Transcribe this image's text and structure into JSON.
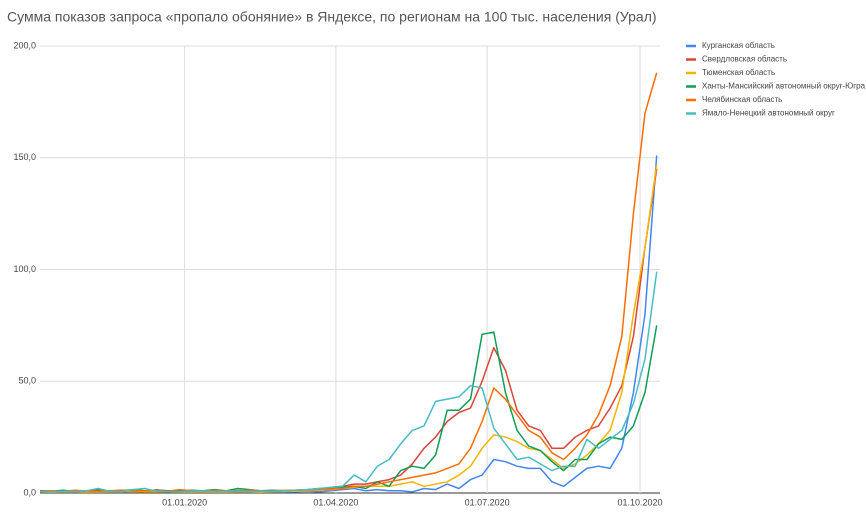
{
  "chart_data": {
    "type": "line",
    "title": "Сумма показов запроса «пропало обоняние» в Яндексе, по регионам на 100 тыс. населения (Урал)",
    "x": [
      "2019-10-06",
      "2019-10-13",
      "2019-10-20",
      "2019-10-27",
      "2019-11-03",
      "2019-11-10",
      "2019-11-17",
      "2019-11-24",
      "2019-12-01",
      "2019-12-08",
      "2019-12-15",
      "2019-12-22",
      "2019-12-29",
      "2020-01-05",
      "2020-01-12",
      "2020-01-19",
      "2020-01-26",
      "2020-02-02",
      "2020-02-09",
      "2020-02-16",
      "2020-02-23",
      "2020-03-01",
      "2020-03-08",
      "2020-03-15",
      "2020-03-22",
      "2020-03-29",
      "2020-04-05",
      "2020-04-12",
      "2020-04-19",
      "2020-04-26",
      "2020-05-03",
      "2020-05-10",
      "2020-05-17",
      "2020-05-24",
      "2020-05-31",
      "2020-06-07",
      "2020-06-14",
      "2020-06-21",
      "2020-06-28",
      "2020-07-05",
      "2020-07-12",
      "2020-07-19",
      "2020-07-26",
      "2020-08-02",
      "2020-08-09",
      "2020-08-16",
      "2020-08-23",
      "2020-08-30",
      "2020-09-06",
      "2020-09-13",
      "2020-09-20",
      "2020-09-27",
      "2020-10-04",
      "2020-10-11"
    ],
    "xlim": [
      "2019-10-06",
      "2020-10-13"
    ],
    "xticks": [
      {
        "value": "2020-01-01",
        "label": "01.01.2020"
      },
      {
        "value": "2020-04-01",
        "label": "01.04.2020"
      },
      {
        "value": "2020-07-01",
        "label": "01.07.2020"
      },
      {
        "value": "2020-10-01",
        "label": "01.10.2020"
      }
    ],
    "ylim": [
      0,
      200
    ],
    "yticks": [
      {
        "value": 0,
        "label": "0,0"
      },
      {
        "value": 50,
        "label": "50,0"
      },
      {
        "value": 100,
        "label": "100,0"
      },
      {
        "value": 150,
        "label": "150,0"
      },
      {
        "value": 200,
        "label": "200,0"
      }
    ],
    "grid": true,
    "legend": "right",
    "series": [
      {
        "name": "Курганская область",
        "color": "#4285f4",
        "values": [
          0.5,
          0.3,
          0.5,
          0.4,
          0.6,
          0.3,
          0.5,
          0.4,
          1,
          0.5,
          1.5,
          0.8,
          0.5,
          0.3,
          0.5,
          0.4,
          0.3,
          0.6,
          0.4,
          0.3,
          0.5,
          0.4,
          0.6,
          0.8,
          0.5,
          1,
          1.5,
          2,
          1,
          1.5,
          1,
          1,
          0.5,
          2,
          1.5,
          4,
          2,
          6,
          8,
          15,
          14,
          12,
          11,
          11,
          5,
          3,
          7,
          11,
          12,
          11,
          20,
          45,
          80,
          151
        ]
      },
      {
        "name": "Свердловская область",
        "color": "#db4437",
        "values": [
          1,
          0.8,
          1,
          0.7,
          0.9,
          1,
          0.8,
          1,
          1.2,
          0.9,
          1.3,
          1,
          0.8,
          1,
          0.9,
          1,
          0.8,
          1.1,
          1,
          0.9,
          1,
          1.1,
          1.2,
          1.5,
          1.8,
          2.5,
          3,
          4,
          4,
          5,
          6,
          8,
          13,
          20,
          25,
          32,
          36,
          38,
          50,
          65,
          55,
          37,
          30,
          28,
          20,
          20,
          25,
          28,
          30,
          38,
          48,
          70,
          110,
          145
        ]
      },
      {
        "name": "Тюменская область",
        "color": "#f4b400",
        "values": [
          0.5,
          0.4,
          0.6,
          0.5,
          0.4,
          0.5,
          0.6,
          0.5,
          0.7,
          0.5,
          0.6,
          0.5,
          0.4,
          0.6,
          0.5,
          0.4,
          0.5,
          0.6,
          0.5,
          0.4,
          0.6,
          0.7,
          0.8,
          1,
          1.2,
          1.5,
          2,
          2.5,
          3,
          3,
          3,
          4,
          5,
          3,
          4,
          5,
          8,
          12,
          20,
          26,
          25,
          23,
          20,
          19,
          15,
          11,
          13,
          17,
          22,
          28,
          45,
          80,
          110,
          147
        ]
      },
      {
        "name": "Ханты-Мансийский автономный округ-Югра",
        "color": "#0f9d58",
        "values": [
          1,
          0.8,
          1.2,
          0.6,
          1,
          1.5,
          0.8,
          1,
          1.5,
          1,
          1.2,
          1,
          0.8,
          1.2,
          1,
          1.5,
          1,
          2,
          1.5,
          1,
          1.2,
          1,
          1.3,
          1.5,
          2,
          2,
          2.5,
          3,
          2,
          5,
          3,
          10,
          12,
          11,
          17,
          37,
          37,
          42,
          71,
          72,
          45,
          28,
          21,
          19,
          14,
          10,
          15,
          15,
          22,
          25,
          24,
          30,
          45,
          75
        ]
      },
      {
        "name": "Челябинская область",
        "color": "#ff6d00",
        "values": [
          0.8,
          1,
          0.7,
          1.2,
          0.9,
          0.8,
          1,
          1.3,
          0.9,
          1,
          1.2,
          0.8,
          1.5,
          1,
          0.9,
          1.1,
          1,
          0.8,
          1.2,
          1,
          0.9,
          1.1,
          1.2,
          1.4,
          1.6,
          1.8,
          2,
          3,
          3,
          4,
          5,
          6,
          7,
          8,
          9,
          11,
          13,
          20,
          32,
          47,
          42,
          35,
          28,
          25,
          18,
          15,
          20,
          26,
          35,
          48,
          70,
          125,
          170,
          188
        ]
      },
      {
        "name": "Ямало-Ненецкий автономный округ",
        "color": "#46bdc6",
        "values": [
          0.6,
          0.5,
          0.8,
          0.6,
          1,
          2,
          0.7,
          0.5,
          1.5,
          2,
          0.8,
          0.6,
          0.5,
          0.8,
          1,
          0.6,
          0.7,
          0.9,
          0.6,
          0.8,
          0.7,
          1,
          1.2,
          1.5,
          2,
          2.5,
          3,
          8,
          5,
          12,
          15,
          22,
          28,
          30,
          41,
          42,
          43,
          48,
          47,
          29,
          22,
          15,
          16,
          13,
          10,
          12,
          12,
          24,
          20,
          24,
          28,
          40,
          60,
          99
        ]
      }
    ]
  }
}
